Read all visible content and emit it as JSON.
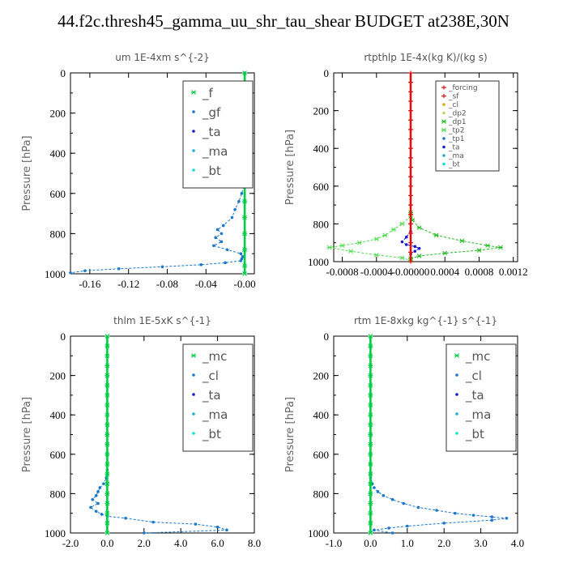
{
  "title": "44.f2c.thresh45_gamma_uu_shr_tau_shear  BUDGET at238E,30N",
  "colors": {
    "f": "#00cc44",
    "gf": "#1a77cc",
    "ta": "#1a1acc",
    "ma": "#22aadd",
    "bt": "#11dddd",
    "forcing": "#dd1111",
    "sf": "#dd1111",
    "cl": "#ddaa00",
    "dp2": "#cccc66",
    "dp1": "#22bb22",
    "tp2": "#55dd55",
    "tp1": "#1a77cc",
    "mc": "#00cc44",
    "cl_blue": "#1a77cc"
  },
  "chart_data": [
    {
      "type": "line",
      "title": "um  1E-4xm  s^{-2}",
      "ylabel": "Pressure [hPa]",
      "xlim": [
        -0.18,
        0.01
      ],
      "ylim": [
        1000,
        0
      ],
      "xticks": [
        -0.16,
        -0.12,
        -0.08,
        -0.04,
        0.0
      ],
      "xtick_labels": [
        "-0.16",
        "-0.12",
        "-0.08",
        "-0.04",
        "-0.00"
      ],
      "yticks": [
        0,
        200,
        400,
        600,
        800,
        1000
      ],
      "legend": [
        "_f",
        "_gf",
        "_ta",
        "_ma",
        "_bt"
      ],
      "legend_style": "large",
      "series": [
        {
          "name": "_gf",
          "colorKey": "gf",
          "x": [
            0,
            0,
            0,
            0,
            0,
            0,
            -0.001,
            -0.003,
            -0.006,
            -0.01,
            -0.013,
            -0.022,
            -0.028,
            -0.024,
            -0.03,
            -0.024,
            -0.032,
            -0.018,
            -0.004,
            -0.002,
            -0.003,
            -0.004,
            -0.02,
            -0.045,
            -0.085,
            -0.13,
            -0.165,
            -0.18
          ],
          "y": [
            0,
            100,
            200,
            300,
            400,
            500,
            560,
            600,
            640,
            680,
            720,
            760,
            780,
            800,
            820,
            840,
            860,
            880,
            900,
            915,
            925,
            935,
            945,
            955,
            965,
            975,
            985,
            995
          ]
        },
        {
          "name": "_f",
          "colorKey": "f",
          "x": [
            0,
            0,
            0,
            0,
            0,
            0,
            0,
            0,
            0,
            0,
            0,
            0,
            0,
            0
          ],
          "y": [
            0,
            80,
            160,
            240,
            320,
            400,
            480,
            560,
            640,
            720,
            800,
            880,
            960,
            1000
          ]
        }
      ]
    },
    {
      "type": "line",
      "title": "rtpthlp  1E-4x(kg K)/(kg s)",
      "ylabel": "Pressure [hPa]",
      "xlim": [
        -0.0009,
        0.00125
      ],
      "ylim": [
        1000,
        0
      ],
      "xticks": [
        -0.0008,
        -0.0004,
        0.0,
        0.0004,
        0.0008,
        0.0012
      ],
      "xtick_labels": [
        "-0.0008",
        "-0.0004",
        "-0.00000",
        "0.0004",
        "0.0008",
        "0.0012"
      ],
      "yticks": [
        0,
        200,
        400,
        600,
        800,
        1000
      ],
      "legend": [
        "_forcing",
        "_sf",
        "_cl",
        "_dp2",
        "_dp1",
        "_tp2",
        "_tp1",
        "_ta",
        "_ma",
        "_bt"
      ],
      "legend_style": "small",
      "series": [
        {
          "name": "_dp1",
          "colorKey": "dp1",
          "x": [
            0,
            2e-05,
            0.0001,
            0.0003,
            0.0006,
            0.0009,
            0.00105,
            0.0008,
            0.0004,
            0.0001,
            0
          ],
          "y": [
            740,
            780,
            820,
            860,
            890,
            915,
            925,
            940,
            955,
            970,
            985
          ]
        },
        {
          "name": "_tp2",
          "colorKey": "tp2",
          "x": [
            0,
            -0.0001,
            -0.0002,
            -0.0003,
            -0.0004,
            -0.0006,
            -0.0008,
            -0.00095,
            -0.0007,
            -0.0004,
            -0.0001,
            0
          ],
          "y": [
            760,
            800,
            830,
            860,
            880,
            900,
            915,
            925,
            945,
            965,
            980,
            995
          ]
        },
        {
          "name": "_ta",
          "colorKey": "ta",
          "x": [
            0,
            -5e-05,
            -0.0001,
            -5e-05,
            5e-05,
            0.0001,
            5e-05,
            0
          ],
          "y": [
            840,
            870,
            895,
            910,
            920,
            930,
            945,
            960
          ]
        },
        {
          "name": "_forcing",
          "colorKey": "forcing",
          "x": [
            0,
            0,
            0,
            0,
            0,
            0,
            0,
            0,
            0,
            0,
            0,
            0,
            0,
            0,
            0,
            0,
            0,
            0,
            0,
            0,
            0
          ],
          "y": [
            0,
            50,
            100,
            150,
            200,
            250,
            300,
            350,
            400,
            450,
            500,
            550,
            600,
            650,
            700,
            750,
            800,
            850,
            900,
            950,
            1000
          ]
        }
      ]
    },
    {
      "type": "line",
      "title": "thlm  1E-5xK  s^{-1}",
      "ylabel": "Pressure [hPa]",
      "xlim": [
        -2.0,
        8.0
      ],
      "ylim": [
        1000,
        0
      ],
      "xticks": [
        -2.0,
        0.0,
        2.0,
        4.0,
        6.0,
        8.0
      ],
      "xtick_labels": [
        "-2.0",
        "0.0",
        "2.0",
        "4.0",
        "6.0",
        "8.0"
      ],
      "yticks": [
        0,
        200,
        400,
        600,
        800,
        1000
      ],
      "legend": [
        "_mc",
        "_cl",
        "_ta",
        "_ma",
        "_bt"
      ],
      "legend_style": "large",
      "series": [
        {
          "name": "_cl",
          "colorKey": "cl_blue",
          "x": [
            0,
            0,
            0,
            -0.05,
            -0.2,
            -0.4,
            -0.5,
            -0.6,
            -0.8,
            -0.5,
            -0.9,
            -0.6,
            -0.3,
            0,
            1.0,
            2.5,
            4.8,
            6.0,
            6.5,
            2.0
          ],
          "y": [
            500,
            600,
            680,
            720,
            750,
            770,
            790,
            810,
            830,
            850,
            870,
            890,
            905,
            915,
            925,
            945,
            955,
            970,
            985,
            1000
          ]
        },
        {
          "name": "_mc",
          "colorKey": "mc",
          "x": [
            0,
            0,
            0,
            0,
            0,
            0,
            0,
            0,
            0,
            0,
            0,
            0,
            0,
            0,
            0,
            0,
            0,
            0,
            0,
            0,
            0
          ],
          "y": [
            0,
            50,
            100,
            150,
            200,
            250,
            300,
            350,
            400,
            450,
            500,
            550,
            600,
            650,
            700,
            750,
            800,
            850,
            900,
            950,
            1000
          ]
        }
      ]
    },
    {
      "type": "line",
      "title": "rtm  1E-8xkg kg^{-1} s^{-1}",
      "ylabel": "Pressure [hPa]",
      "xlim": [
        -1.0,
        4.0
      ],
      "ylim": [
        1000,
        0
      ],
      "xticks": [
        -1.0,
        0.0,
        1.0,
        2.0,
        3.0,
        4.0
      ],
      "xtick_labels": [
        "-1.0",
        "0.0",
        "1.0",
        "2.0",
        "3.0",
        "4.0"
      ],
      "yticks": [
        0,
        200,
        400,
        600,
        800,
        1000
      ],
      "legend": [
        "_mc",
        "_cl",
        "_ta",
        "_ma",
        "_bt"
      ],
      "legend_style": "large",
      "series": [
        {
          "name": "_cl",
          "colorKey": "cl_blue",
          "x": [
            0,
            0,
            0,
            0.05,
            0.1,
            0.2,
            0.35,
            0.6,
            0.9,
            1.3,
            1.8,
            2.3,
            2.8,
            3.3,
            3.7,
            3.3,
            2.0,
            1.0,
            0.5,
            0.1,
            0.6
          ],
          "y": [
            500,
            650,
            720,
            750,
            770,
            790,
            810,
            830,
            850,
            870,
            885,
            900,
            910,
            918,
            925,
            935,
            950,
            965,
            975,
            985,
            1000
          ]
        },
        {
          "name": "_mc",
          "colorKey": "mc",
          "x": [
            0,
            0,
            0,
            0,
            0,
            0,
            0,
            0,
            0,
            0,
            0,
            0,
            0,
            0,
            0,
            0,
            0,
            0,
            0,
            0,
            0
          ],
          "y": [
            0,
            50,
            100,
            150,
            200,
            250,
            300,
            350,
            400,
            450,
            500,
            550,
            600,
            650,
            700,
            750,
            800,
            850,
            900,
            950,
            1000
          ]
        }
      ]
    }
  ]
}
